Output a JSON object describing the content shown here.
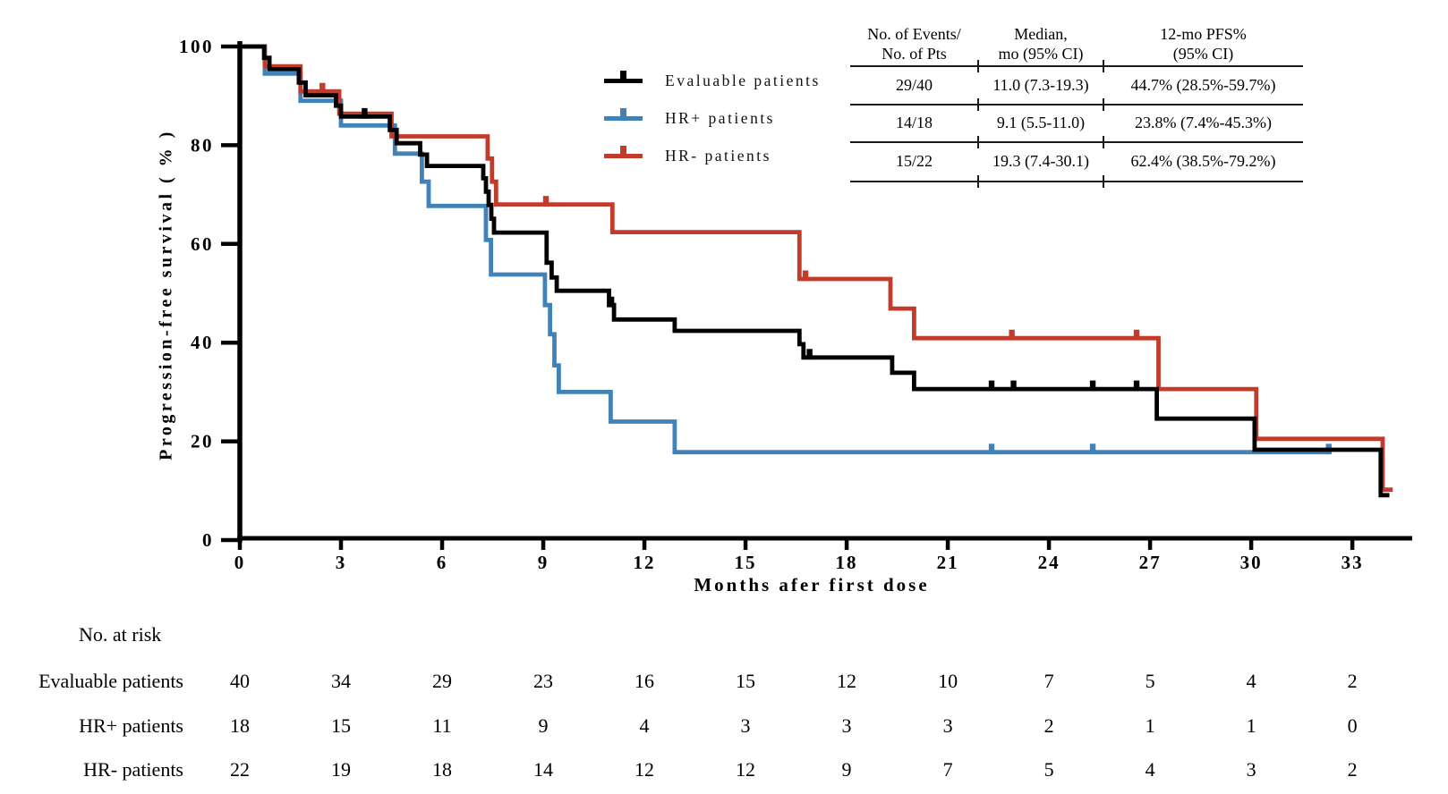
{
  "figure": {
    "legend": [
      {
        "label": "Evaluable patients",
        "color": "#000000"
      },
      {
        "label": "HR+ patients",
        "color": "#4183b8"
      },
      {
        "label": "HR- patients",
        "color": "#c23b2b"
      }
    ],
    "stats_table": {
      "columns": [
        [
          "No. of Events/",
          "No. of Pts"
        ],
        [
          "Median,",
          "mo (95% CI)"
        ],
        [
          "12-mo PFS%",
          "(95% CI)"
        ]
      ],
      "rows": [
        [
          "29/40",
          "11.0 (7.3-19.3)",
          "44.7% (28.5%-59.7%)"
        ],
        [
          "14/18",
          "9.1 (5.5-11.0)",
          "23.8% (7.4%-45.3%)"
        ],
        [
          "15/22",
          "19.3 (7.4-30.1)",
          "62.4% (38.5%-79.2%)"
        ]
      ]
    },
    "risk_table": {
      "title": "No. at risk",
      "rows": [
        {
          "label": "Evaluable patients",
          "values": [
            "40",
            "34",
            "29",
            "23",
            "16",
            "15",
            "12",
            "10",
            "7",
            "5",
            "4",
            "2"
          ]
        },
        {
          "label": "HR+ patients",
          "values": [
            "18",
            "15",
            "11",
            "9",
            "4",
            "3",
            "3",
            "3",
            "2",
            "1",
            "1",
            "0"
          ]
        },
        {
          "label": "HR- patients",
          "values": [
            "22",
            "19",
            "18",
            "14",
            "12",
            "12",
            "9",
            "7",
            "5",
            "4",
            "3",
            "2"
          ]
        }
      ]
    }
  },
  "chart_data": {
    "type": "line",
    "subtype": "kaplan_meier_step",
    "title": "",
    "xlabel": "Months afer first dose",
    "ylabel": "Progression-free survival ( % )",
    "xlim": [
      0,
      34.6
    ],
    "ylim": [
      0,
      100
    ],
    "x_ticks": [
      0,
      3,
      6,
      9,
      12,
      15,
      18,
      21,
      24,
      27,
      30,
      33
    ],
    "y_ticks": [
      0,
      20,
      40,
      60,
      80,
      100
    ],
    "grid": false,
    "legend_position": "top-right",
    "series": [
      {
        "name": "Evaluable patients",
        "color": "#000000",
        "events_pts": "29/40",
        "median": "11.0 (7.3-19.3)",
        "pfs12": "44.7% (28.5%-59.7%)",
        "steps": [
          [
            0,
            100
          ],
          [
            0.72,
            97.7
          ],
          [
            0.88,
            95.4
          ],
          [
            1.75,
            92.7
          ],
          [
            1.95,
            90.1
          ],
          [
            2.85,
            88.0
          ],
          [
            3.0,
            85.8
          ],
          [
            4.45,
            83.1
          ],
          [
            4.65,
            80.4
          ],
          [
            5.35,
            78.1
          ],
          [
            5.55,
            75.8
          ],
          [
            7.22,
            73.3
          ],
          [
            7.3,
            70.6
          ],
          [
            7.38,
            67.9
          ],
          [
            7.46,
            65.1
          ],
          [
            7.54,
            62.3
          ],
          [
            9.1,
            56.2
          ],
          [
            9.25,
            53.2
          ],
          [
            9.4,
            50.5
          ],
          [
            10.95,
            47.6
          ],
          [
            11.1,
            44.7
          ],
          [
            12.9,
            42.4
          ],
          [
            16.6,
            39.7
          ],
          [
            16.72,
            37.0
          ],
          [
            19.35,
            33.9
          ],
          [
            20.0,
            30.6
          ],
          [
            27.2,
            24.6
          ],
          [
            30.1,
            18.3
          ],
          [
            33.84,
            9.1
          ]
        ],
        "end": 34.1,
        "censors": [
          3.7,
          11.02,
          16.9,
          22.3,
          22.95,
          25.3,
          26.6
        ]
      },
      {
        "name": "HR+ patients",
        "color": "#4183b8",
        "events_pts": "14/18",
        "median": "9.1 (5.5-11.0)",
        "pfs12": "23.8% (7.4%-45.3%)",
        "steps": [
          [
            0,
            100
          ],
          [
            0.74,
            94.5
          ],
          [
            1.8,
            89.0
          ],
          [
            3.0,
            84.0
          ],
          [
            4.6,
            78.3
          ],
          [
            5.4,
            72.6
          ],
          [
            5.6,
            67.7
          ],
          [
            7.3,
            60.8
          ],
          [
            7.45,
            53.8
          ],
          [
            9.05,
            47.6
          ],
          [
            9.2,
            41.7
          ],
          [
            9.33,
            35.4
          ],
          [
            9.46,
            30.0
          ],
          [
            11.0,
            24.0
          ],
          [
            12.9,
            17.8
          ]
        ],
        "end": 32.35,
        "censors": [
          22.3,
          25.3,
          32.3
        ]
      },
      {
        "name": "HR- patients",
        "color": "#c23b2b",
        "events_pts": "15/22",
        "median": "19.3 (7.4-30.1)",
        "pfs12": "62.4% (38.5%-79.2%)",
        "steps": [
          [
            0,
            100
          ],
          [
            0.74,
            96.0
          ],
          [
            1.8,
            90.9
          ],
          [
            2.95,
            86.4
          ],
          [
            4.5,
            81.8
          ],
          [
            7.35,
            77.3
          ],
          [
            7.48,
            72.6
          ],
          [
            7.6,
            68.0
          ],
          [
            11.05,
            62.4
          ],
          [
            16.6,
            52.9
          ],
          [
            19.3,
            46.9
          ],
          [
            20.0,
            40.9
          ],
          [
            27.25,
            30.6
          ],
          [
            30.15,
            20.5
          ],
          [
            33.9,
            10.2
          ]
        ],
        "end": 34.2,
        "censors": [
          2.45,
          9.08,
          16.78,
          22.9,
          26.6
        ]
      }
    ]
  }
}
